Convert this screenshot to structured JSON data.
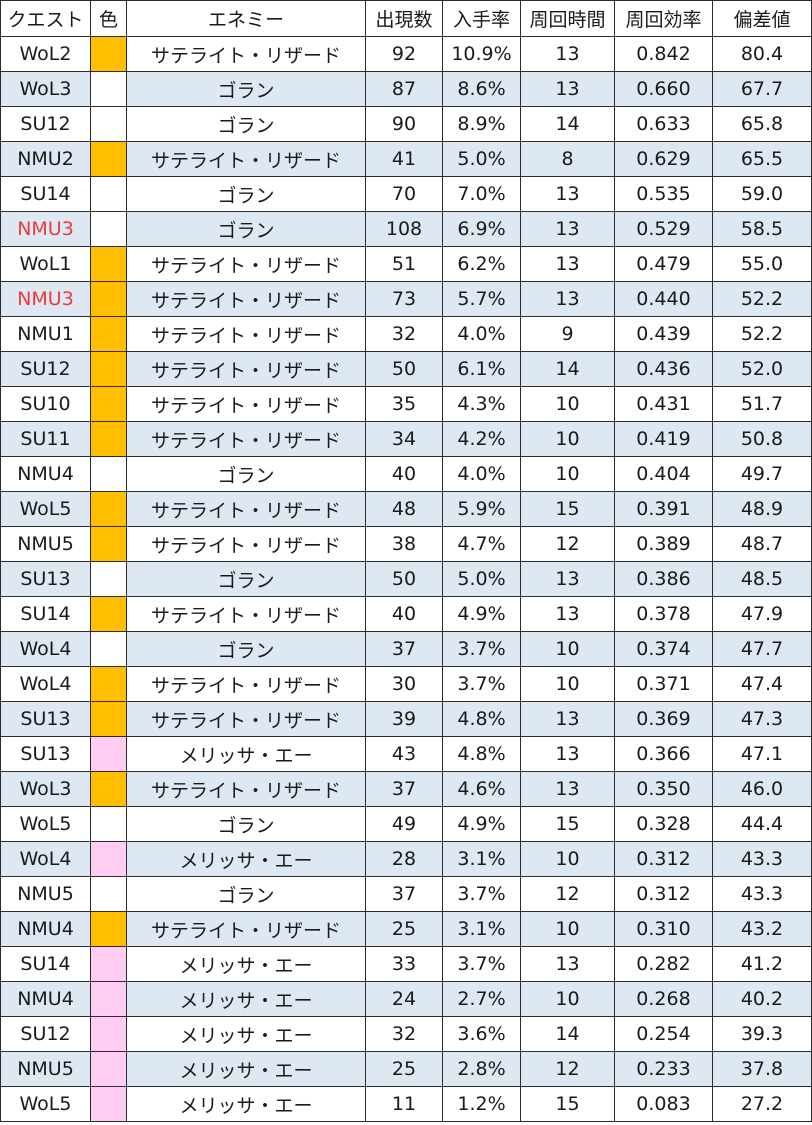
{
  "colors": {
    "row_shade": "#dde8f3",
    "swatch_orange": "#ffbf00",
    "swatch_pink": "#ffccf2",
    "swatch_white": "#ffffff",
    "highlight_text": "#ee3a3a"
  },
  "table": {
    "headers": {
      "quest": "クエスト",
      "color": "色",
      "enemy": "エネミー",
      "appearances": "出現数",
      "drop_rate": "入手率",
      "loop_time": "周回時間",
      "efficiency": "周回効率",
      "deviation": "偏差値"
    },
    "rows": [
      {
        "quest": "WoL2",
        "color": "orange",
        "enemy": "サテライト・リザード",
        "appearances": "92",
        "drop_rate": "10.9%",
        "loop_time": "13",
        "efficiency": "0.842",
        "deviation": "80.4",
        "quest_highlight": false
      },
      {
        "quest": "WoL3",
        "color": "white",
        "enemy": "ゴラン",
        "appearances": "87",
        "drop_rate": "8.6%",
        "loop_time": "13",
        "efficiency": "0.660",
        "deviation": "67.7",
        "quest_highlight": false
      },
      {
        "quest": "SU12",
        "color": "white",
        "enemy": "ゴラン",
        "appearances": "90",
        "drop_rate": "8.9%",
        "loop_time": "14",
        "efficiency": "0.633",
        "deviation": "65.8",
        "quest_highlight": false
      },
      {
        "quest": "NMU2",
        "color": "orange",
        "enemy": "サテライト・リザード",
        "appearances": "41",
        "drop_rate": "5.0%",
        "loop_time": "8",
        "efficiency": "0.629",
        "deviation": "65.5",
        "quest_highlight": false
      },
      {
        "quest": "SU14",
        "color": "white",
        "enemy": "ゴラン",
        "appearances": "70",
        "drop_rate": "7.0%",
        "loop_time": "13",
        "efficiency": "0.535",
        "deviation": "59.0",
        "quest_highlight": false
      },
      {
        "quest": "NMU3",
        "color": "white",
        "enemy": "ゴラン",
        "appearances": "108",
        "drop_rate": "6.9%",
        "loop_time": "13",
        "efficiency": "0.529",
        "deviation": "58.5",
        "quest_highlight": true
      },
      {
        "quest": "WoL1",
        "color": "orange",
        "enemy": "サテライト・リザード",
        "appearances": "51",
        "drop_rate": "6.2%",
        "loop_time": "13",
        "efficiency": "0.479",
        "deviation": "55.0",
        "quest_highlight": false
      },
      {
        "quest": "NMU3",
        "color": "orange",
        "enemy": "サテライト・リザード",
        "appearances": "73",
        "drop_rate": "5.7%",
        "loop_time": "13",
        "efficiency": "0.440",
        "deviation": "52.2",
        "quest_highlight": true
      },
      {
        "quest": "NMU1",
        "color": "orange",
        "enemy": "サテライト・リザード",
        "appearances": "32",
        "drop_rate": "4.0%",
        "loop_time": "9",
        "efficiency": "0.439",
        "deviation": "52.2",
        "quest_highlight": false
      },
      {
        "quest": "SU12",
        "color": "orange",
        "enemy": "サテライト・リザード",
        "appearances": "50",
        "drop_rate": "6.1%",
        "loop_time": "14",
        "efficiency": "0.436",
        "deviation": "52.0",
        "quest_highlight": false
      },
      {
        "quest": "SU10",
        "color": "orange",
        "enemy": "サテライト・リザード",
        "appearances": "35",
        "drop_rate": "4.3%",
        "loop_time": "10",
        "efficiency": "0.431",
        "deviation": "51.7",
        "quest_highlight": false
      },
      {
        "quest": "SU11",
        "color": "orange",
        "enemy": "サテライト・リザード",
        "appearances": "34",
        "drop_rate": "4.2%",
        "loop_time": "10",
        "efficiency": "0.419",
        "deviation": "50.8",
        "quest_highlight": false
      },
      {
        "quest": "NMU4",
        "color": "white",
        "enemy": "ゴラン",
        "appearances": "40",
        "drop_rate": "4.0%",
        "loop_time": "10",
        "efficiency": "0.404",
        "deviation": "49.7",
        "quest_highlight": false
      },
      {
        "quest": "WoL5",
        "color": "orange",
        "enemy": "サテライト・リザード",
        "appearances": "48",
        "drop_rate": "5.9%",
        "loop_time": "15",
        "efficiency": "0.391",
        "deviation": "48.9",
        "quest_highlight": false
      },
      {
        "quest": "NMU5",
        "color": "orange",
        "enemy": "サテライト・リザード",
        "appearances": "38",
        "drop_rate": "4.7%",
        "loop_time": "12",
        "efficiency": "0.389",
        "deviation": "48.7",
        "quest_highlight": false
      },
      {
        "quest": "SU13",
        "color": "white",
        "enemy": "ゴラン",
        "appearances": "50",
        "drop_rate": "5.0%",
        "loop_time": "13",
        "efficiency": "0.386",
        "deviation": "48.5",
        "quest_highlight": false
      },
      {
        "quest": "SU14",
        "color": "orange",
        "enemy": "サテライト・リザード",
        "appearances": "40",
        "drop_rate": "4.9%",
        "loop_time": "13",
        "efficiency": "0.378",
        "deviation": "47.9",
        "quest_highlight": false
      },
      {
        "quest": "WoL4",
        "color": "white",
        "enemy": "ゴラン",
        "appearances": "37",
        "drop_rate": "3.7%",
        "loop_time": "10",
        "efficiency": "0.374",
        "deviation": "47.7",
        "quest_highlight": false
      },
      {
        "quest": "WoL4",
        "color": "orange",
        "enemy": "サテライト・リザード",
        "appearances": "30",
        "drop_rate": "3.7%",
        "loop_time": "10",
        "efficiency": "0.371",
        "deviation": "47.4",
        "quest_highlight": false
      },
      {
        "quest": "SU13",
        "color": "orange",
        "enemy": "サテライト・リザード",
        "appearances": "39",
        "drop_rate": "4.8%",
        "loop_time": "13",
        "efficiency": "0.369",
        "deviation": "47.3",
        "quest_highlight": false
      },
      {
        "quest": "SU13",
        "color": "pink",
        "enemy": "メリッサ・エー",
        "appearances": "43",
        "drop_rate": "4.8%",
        "loop_time": "13",
        "efficiency": "0.366",
        "deviation": "47.1",
        "quest_highlight": false
      },
      {
        "quest": "WoL3",
        "color": "orange",
        "enemy": "サテライト・リザード",
        "appearances": "37",
        "drop_rate": "4.6%",
        "loop_time": "13",
        "efficiency": "0.350",
        "deviation": "46.0",
        "quest_highlight": false
      },
      {
        "quest": "WoL5",
        "color": "white",
        "enemy": "ゴラン",
        "appearances": "49",
        "drop_rate": "4.9%",
        "loop_time": "15",
        "efficiency": "0.328",
        "deviation": "44.4",
        "quest_highlight": false
      },
      {
        "quest": "WoL4",
        "color": "pink",
        "enemy": "メリッサ・エー",
        "appearances": "28",
        "drop_rate": "3.1%",
        "loop_time": "10",
        "efficiency": "0.312",
        "deviation": "43.3",
        "quest_highlight": false
      },
      {
        "quest": "NMU5",
        "color": "white",
        "enemy": "ゴラン",
        "appearances": "37",
        "drop_rate": "3.7%",
        "loop_time": "12",
        "efficiency": "0.312",
        "deviation": "43.3",
        "quest_highlight": false
      },
      {
        "quest": "NMU4",
        "color": "orange",
        "enemy": "サテライト・リザード",
        "appearances": "25",
        "drop_rate": "3.1%",
        "loop_time": "10",
        "efficiency": "0.310",
        "deviation": "43.2",
        "quest_highlight": false
      },
      {
        "quest": "SU14",
        "color": "pink",
        "enemy": "メリッサ・エー",
        "appearances": "33",
        "drop_rate": "3.7%",
        "loop_time": "13",
        "efficiency": "0.282",
        "deviation": "41.2",
        "quest_highlight": false
      },
      {
        "quest": "NMU4",
        "color": "pink",
        "enemy": "メリッサ・エー",
        "appearances": "24",
        "drop_rate": "2.7%",
        "loop_time": "10",
        "efficiency": "0.268",
        "deviation": "40.2",
        "quest_highlight": false
      },
      {
        "quest": "SU12",
        "color": "pink",
        "enemy": "メリッサ・エー",
        "appearances": "32",
        "drop_rate": "3.6%",
        "loop_time": "14",
        "efficiency": "0.254",
        "deviation": "39.3",
        "quest_highlight": false
      },
      {
        "quest": "NMU5",
        "color": "pink",
        "enemy": "メリッサ・エー",
        "appearances": "25",
        "drop_rate": "2.8%",
        "loop_time": "12",
        "efficiency": "0.233",
        "deviation": "37.8",
        "quest_highlight": false
      },
      {
        "quest": "WoL5",
        "color": "pink",
        "enemy": "メリッサ・エー",
        "appearances": "11",
        "drop_rate": "1.2%",
        "loop_time": "15",
        "efficiency": "0.083",
        "deviation": "27.2",
        "quest_highlight": false
      }
    ]
  }
}
